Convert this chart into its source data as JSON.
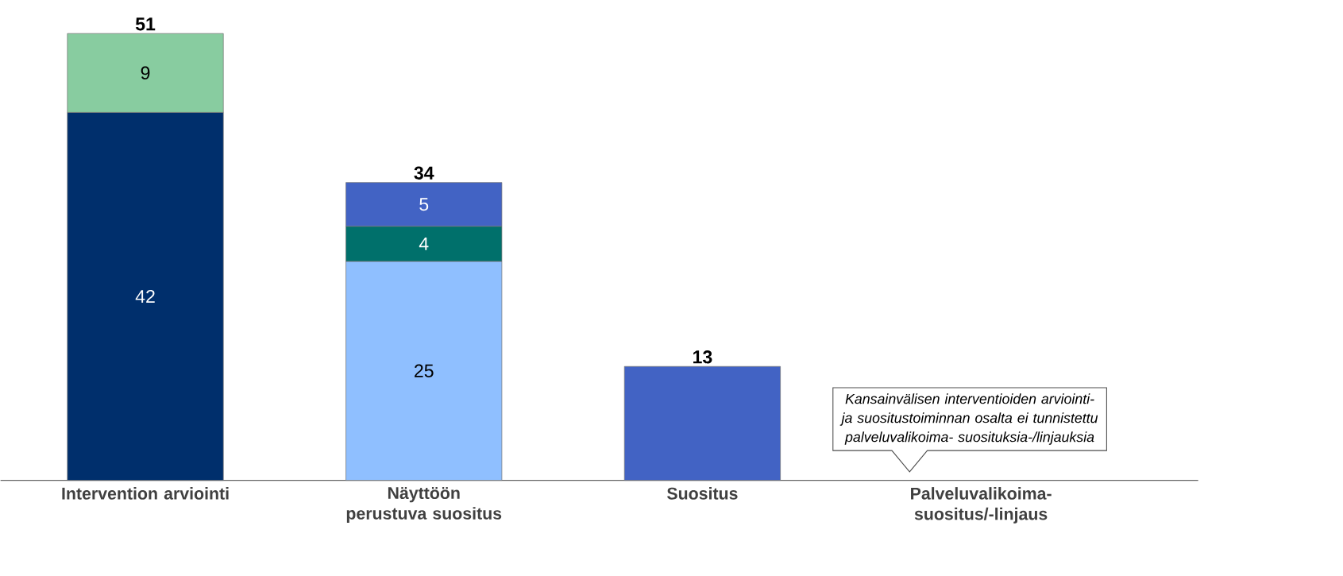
{
  "chart_data": {
    "type": "bar",
    "stacked": true,
    "categories": [
      "Intervention arviointi",
      "Näyttöön perustuva suositus",
      "Suositus",
      "Palveluvalikoima-suositus/-linjaus"
    ],
    "series": [
      {
        "color": "#002f6c",
        "values": [
          42,
          null,
          null,
          null
        ],
        "value_labels": [
          "42",
          null,
          null,
          null
        ]
      },
      {
        "color": "#8fbfff",
        "values": [
          null,
          25,
          null,
          null
        ],
        "value_labels": [
          null,
          "25",
          null,
          null
        ]
      },
      {
        "color": "#00706b",
        "values": [
          null,
          4,
          null,
          null
        ],
        "value_labels": [
          null,
          "4",
          null,
          null
        ]
      },
      {
        "color": "#88cca0",
        "values": [
          9,
          null,
          null,
          null
        ],
        "value_labels": [
          "9",
          null,
          null,
          null
        ]
      },
      {
        "color": "#4263c4",
        "values": [
          null,
          5,
          13,
          null
        ],
        "value_labels": [
          null,
          "5",
          null,
          null
        ]
      }
    ],
    "totals": [
      "51",
      "34",
      "13",
      null
    ],
    "annotations": [
      "*Kansainvälisen interventioiden arviointi- ja suositustoiminnan osalta ei tunnistettu palveluvalikoima- suosituksia-/linjauksia*"
    ]
  }
}
